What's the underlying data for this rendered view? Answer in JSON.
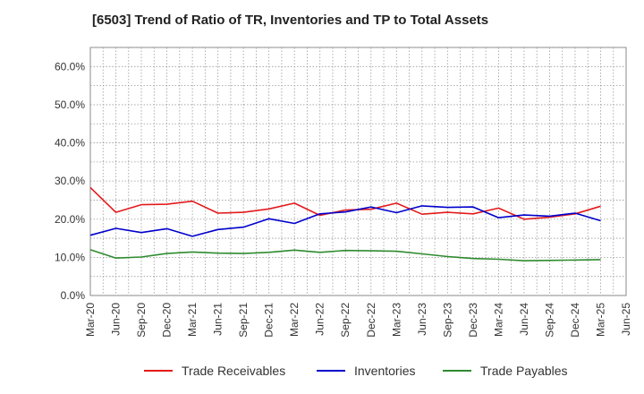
{
  "chart_data": {
    "type": "line",
    "title": "[6503]  Trend of Ratio of TR, Inventories and TP to Total Assets",
    "xlabel": "",
    "ylabel": "",
    "ylim": [
      0,
      65
    ],
    "yticks": [
      0,
      10,
      20,
      30,
      40,
      50,
      60
    ],
    "ytick_labels": [
      "0.0%",
      "10.0%",
      "20.0%",
      "30.0%",
      "40.0%",
      "50.0%",
      "60.0%"
    ],
    "x": [
      "Mar-20",
      "Jun-20",
      "Sep-20",
      "Dec-20",
      "Mar-21",
      "Jun-21",
      "Sep-21",
      "Dec-21",
      "Mar-22",
      "Jun-22",
      "Sep-22",
      "Dec-22",
      "Mar-23",
      "Jun-23",
      "Sep-23",
      "Dec-23",
      "Mar-24",
      "Jun-24",
      "Sep-24",
      "Dec-24",
      "Mar-25"
    ],
    "xtick_labels": [
      "Mar-20",
      "Jun-20",
      "Sep-20",
      "Dec-20",
      "Mar-21",
      "Jun-21",
      "Sep-21",
      "Dec-21",
      "Mar-22",
      "Jun-22",
      "Sep-22",
      "Dec-22",
      "Mar-23",
      "Jun-23",
      "Sep-23",
      "Dec-23",
      "Mar-24",
      "Jun-24",
      "Sep-24",
      "Dec-24",
      "Mar-25",
      "Jun-25"
    ],
    "grid": true,
    "legend_position": "bottom",
    "series": [
      {
        "name": "Trade Receivables",
        "color": "#e31a1c",
        "values": [
          28.3,
          21.8,
          23.8,
          23.9,
          24.7,
          21.6,
          21.8,
          22.7,
          24.2,
          21.0,
          22.4,
          22.6,
          24.2,
          21.3,
          21.8,
          21.4,
          22.9,
          20.0,
          20.5,
          21.4,
          23.4
        ]
      },
      {
        "name": "Inventories",
        "color": "#0000cc",
        "values": [
          15.8,
          17.6,
          16.5,
          17.5,
          15.5,
          17.3,
          17.9,
          20.1,
          18.9,
          21.4,
          21.9,
          23.2,
          21.7,
          23.5,
          23.1,
          23.2,
          20.4,
          21.1,
          20.8,
          21.6,
          19.6
        ]
      },
      {
        "name": "Trade Payables",
        "color": "#2e8b2e",
        "values": [
          12.0,
          9.8,
          10.1,
          11.0,
          11.4,
          11.1,
          11.0,
          11.3,
          11.9,
          11.3,
          11.8,
          11.7,
          11.6,
          10.9,
          10.2,
          9.7,
          9.5,
          9.1,
          9.2,
          9.3,
          9.4
        ]
      }
    ]
  }
}
